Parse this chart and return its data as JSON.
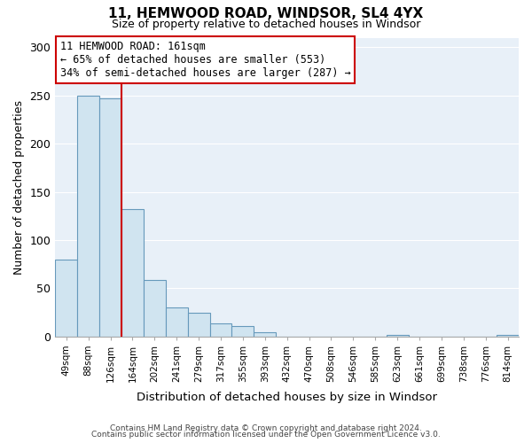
{
  "title": "11, HEMWOOD ROAD, WINDSOR, SL4 4YX",
  "subtitle": "Size of property relative to detached houses in Windsor",
  "xlabel": "Distribution of detached houses by size in Windsor",
  "ylabel": "Number of detached properties",
  "bar_labels": [
    "49sqm",
    "88sqm",
    "126sqm",
    "164sqm",
    "202sqm",
    "241sqm",
    "279sqm",
    "317sqm",
    "355sqm",
    "393sqm",
    "432sqm",
    "470sqm",
    "508sqm",
    "546sqm",
    "585sqm",
    "623sqm",
    "661sqm",
    "699sqm",
    "738sqm",
    "776sqm",
    "814sqm"
  ],
  "bar_values": [
    80,
    250,
    247,
    132,
    59,
    30,
    25,
    14,
    11,
    4,
    0,
    0,
    0,
    0,
    0,
    2,
    0,
    0,
    0,
    0,
    2
  ],
  "bar_color": "#d0e4f0",
  "bar_edge_color": "#6699bb",
  "vline_color": "#cc0000",
  "annotation_box_text": "11 HEMWOOD ROAD: 161sqm\n← 65% of detached houses are smaller (553)\n34% of semi-detached houses are larger (287) →",
  "annotation_box_color": "#ffffff",
  "annotation_box_edge_color": "#cc0000",
  "ylim": [
    0,
    310
  ],
  "yticks": [
    0,
    50,
    100,
    150,
    200,
    250,
    300
  ],
  "footer_line1": "Contains HM Land Registry data © Crown copyright and database right 2024.",
  "footer_line2": "Contains public sector information licensed under the Open Government Licence v3.0.",
  "bg_color": "#e8f0f8",
  "outer_bg": "#ffffff",
  "grid_color": "#ffffff"
}
